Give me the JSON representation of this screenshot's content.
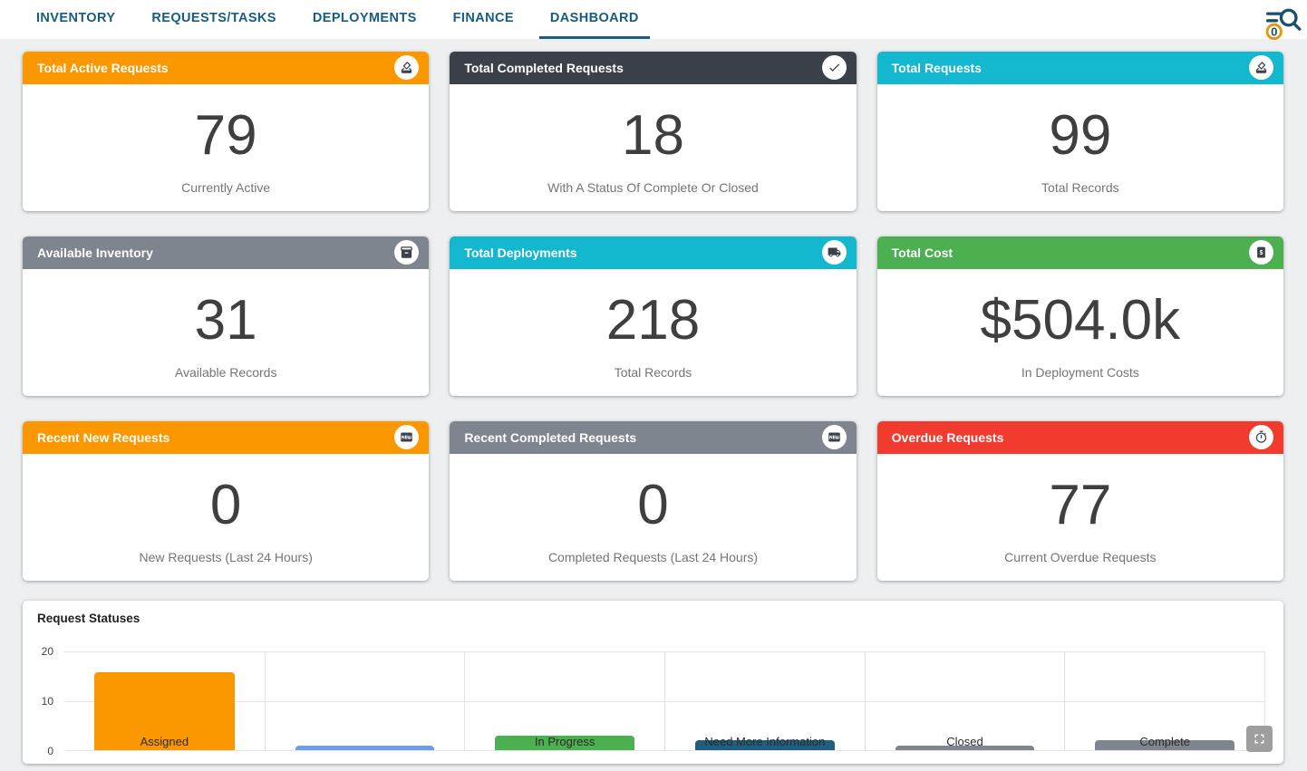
{
  "nav": {
    "tabs": [
      {
        "label": "INVENTORY",
        "active": false
      },
      {
        "label": "REQUESTS/TASKS",
        "active": false
      },
      {
        "label": "DEPLOYMENTS",
        "active": false
      },
      {
        "label": "FINANCE",
        "active": false
      },
      {
        "label": "DASHBOARD",
        "active": true
      }
    ],
    "accent_color": "#185c80",
    "search": {
      "icon": "search-filter-icon",
      "badge_count": "0",
      "badge_ring_color": "#e8940c"
    }
  },
  "cards": [
    {
      "title": "Total Active Requests",
      "value": "79",
      "caption": "Currently Active",
      "header_color": "#fb9800",
      "icon": "ballot-icon"
    },
    {
      "title": "Total Completed Requests",
      "value": "18",
      "caption": "With A Status Of Complete Or Closed",
      "header_color": "#3a4149",
      "icon": "check-icon"
    },
    {
      "title": "Total Requests",
      "value": "99",
      "caption": "Total Records",
      "header_color": "#14b8ce",
      "icon": "ballot-icon"
    },
    {
      "title": "Available Inventory",
      "value": "31",
      "caption": "Available Records",
      "header_color": "#7e858e",
      "icon": "inventory-box-icon"
    },
    {
      "title": "Total Deployments",
      "value": "218",
      "caption": "Total Records",
      "header_color": "#14b8ce",
      "icon": "truck-icon"
    },
    {
      "title": "Total Cost",
      "value": "$504.0k",
      "caption": "In Deployment Costs",
      "header_color": "#4caf50",
      "icon": "dollar-document-icon"
    },
    {
      "title": "Recent New Requests",
      "value": "0",
      "caption": "New Requests (Last 24 Hours)",
      "header_color": "#fb9800",
      "icon": "new-badge-icon"
    },
    {
      "title": "Recent Completed Requests",
      "value": "0",
      "caption": "Completed Requests (Last 24 Hours)",
      "header_color": "#7e858e",
      "icon": "new-badge-icon"
    },
    {
      "title": "Overdue Requests",
      "value": "77",
      "caption": "Current Overdue Requests",
      "header_color": "#f23b2f",
      "icon": "stopwatch-icon"
    }
  ],
  "chart_data": {
    "type": "bar",
    "title": "Request Statuses",
    "categories": [
      "Assigned",
      "",
      "In Progress",
      "Need More Information",
      "Closed",
      "Complete"
    ],
    "values": [
      16,
      1,
      3,
      2,
      1,
      2
    ],
    "bar_colors": [
      "#fb9800",
      "#6d9eeb",
      "#4caf50",
      "#1e5e80",
      "#7e858e",
      "#7e858e"
    ],
    "ylim": [
      0,
      20
    ],
    "yticks": [
      0,
      10,
      20
    ],
    "grid": true,
    "label_position": "inside-bottom",
    "expand_icon": "fullscreen-icon"
  }
}
